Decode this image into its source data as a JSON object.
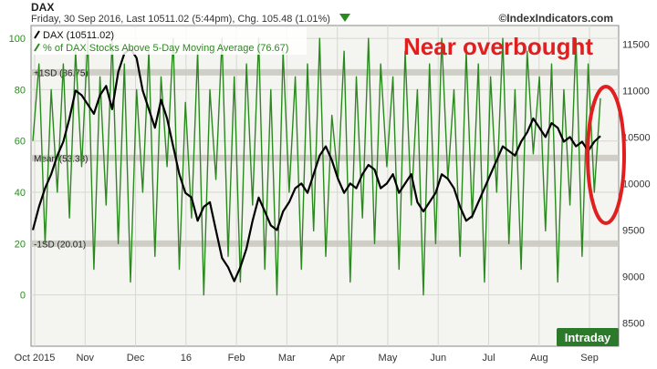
{
  "header": {
    "symbol": "DAX",
    "subtitle": "Friday, 30 Sep 2016, Last 10511.02 (5:44pm), Chg. 105.48 (1.01%)",
    "watermark": "©IndexIndicators.com",
    "badge": "Intraday",
    "collapse_icon": "collapse-triangle-icon"
  },
  "annotation": {
    "text": "Near overbought",
    "color": "#e02020"
  },
  "colors": {
    "dax": "#000000",
    "pct": "#2a8a1e",
    "band": "#c9c9c0",
    "mean": "#c9c9c0",
    "panel": "#f4f4f0",
    "badge_bg": "#2a7a2a"
  },
  "chart_data": {
    "type": "line",
    "xlabel": "",
    "ylabel": "",
    "x_ticks": [
      "Oct 2015",
      "Nov",
      "Dec",
      "16",
      "Feb",
      "Mar",
      "Apr",
      "May",
      "Jun",
      "Jul",
      "Aug",
      "Sep"
    ],
    "y_left_ticks": [
      0,
      20,
      40,
      60,
      80,
      100
    ],
    "y_left_lim": [
      -20,
      105
    ],
    "y_right_ticks": [
      8500,
      9000,
      9500,
      10000,
      10500,
      11000,
      11500
    ],
    "y_right_lim": [
      8250,
      11700
    ],
    "grid": true,
    "legend": "top-left",
    "reference_lines": [
      {
        "label": "+1SD (86.75)",
        "value": 86.75
      },
      {
        "label": "Mean (53.38)",
        "value": 53.38
      },
      {
        "label": "-1SD (20.01)",
        "value": 20.01
      }
    ],
    "series": [
      {
        "name": "DAX (10511.02)",
        "axis": "right",
        "values": [
          9500,
          9750,
          9950,
          10100,
          10300,
          10450,
          10700,
          11000,
          10950,
          10850,
          10750,
          10950,
          11050,
          10800,
          11200,
          11400,
          11450,
          11350,
          11000,
          10800,
          10600,
          10900,
          10700,
          10400,
          10100,
          9900,
          9850,
          9600,
          9750,
          9800,
          9500,
          9200,
          9100,
          8950,
          9100,
          9300,
          9600,
          9850,
          9700,
          9550,
          9500,
          9700,
          9800,
          9950,
          10000,
          9900,
          10100,
          10300,
          10400,
          10250,
          10050,
          9900,
          10000,
          9950,
          10100,
          10200,
          10150,
          9950,
          10000,
          10100,
          9900,
          10000,
          10100,
          9800,
          9700,
          9800,
          9900,
          10100,
          10050,
          9950,
          9750,
          9600,
          9650,
          9800,
          9950,
          10100,
          10250,
          10400,
          10350,
          10300,
          10450,
          10550,
          10700,
          10600,
          10500,
          10650,
          10600,
          10450,
          10500,
          10400,
          10450,
          10350,
          10450,
          10511.02
        ]
      },
      {
        "name": "% of DAX Stocks Above 5-Day Moving Average (76.67)",
        "axis": "left",
        "values": [
          60,
          90,
          20,
          80,
          40,
          90,
          30,
          95,
          50,
          100,
          10,
          85,
          35,
          100,
          20,
          90,
          5,
          80,
          40,
          95,
          15,
          85,
          50,
          100,
          10,
          75,
          30,
          95,
          0,
          80,
          45,
          100,
          15,
          85,
          5,
          90,
          35,
          100,
          10,
          80,
          0,
          95,
          40,
          85,
          10,
          90,
          25,
          100,
          15,
          70,
          45,
          95,
          5,
          85,
          30,
          100,
          20,
          90,
          50,
          85,
          10,
          95,
          35,
          80,
          0,
          90,
          20,
          100,
          45,
          80,
          15,
          95,
          30,
          90,
          5,
          85,
          40,
          100,
          20,
          80,
          10,
          95,
          55,
          85,
          25,
          90,
          5,
          80,
          35,
          100,
          15,
          90,
          40,
          76.67
        ]
      }
    ]
  }
}
